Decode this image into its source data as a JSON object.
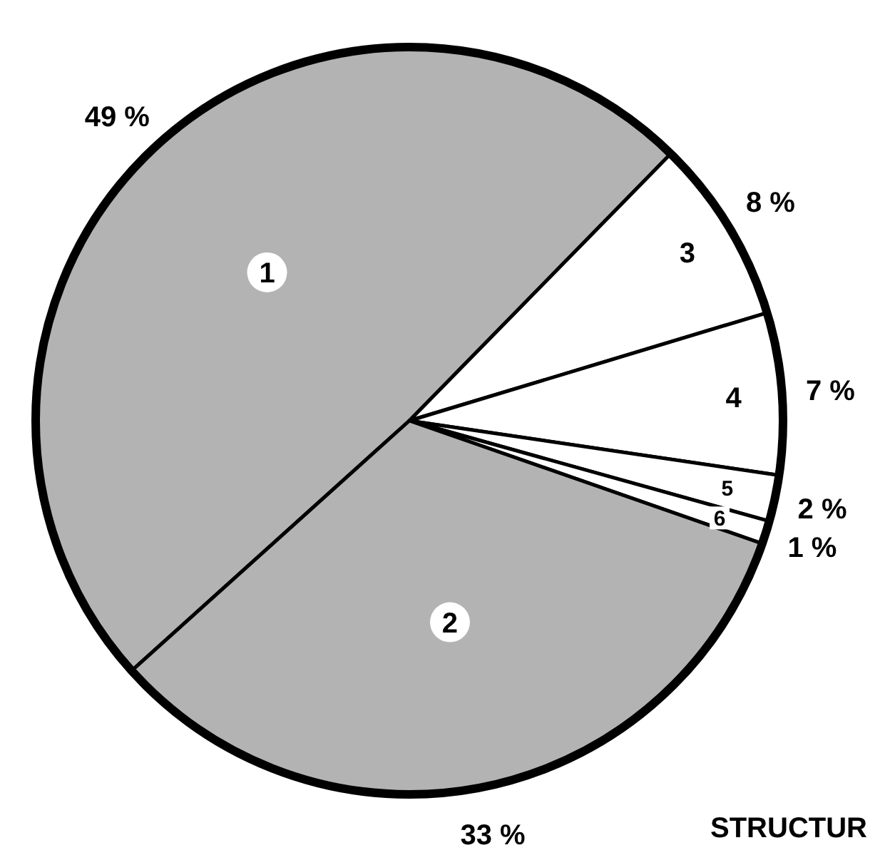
{
  "chart_data": {
    "type": "pie",
    "categories": [
      "1",
      "3",
      "4",
      "5",
      "6",
      "2"
    ],
    "values": [
      49,
      8,
      7,
      2,
      1,
      33
    ],
    "value_labels": [
      "49 %",
      "8 %",
      "7 %",
      "2 %",
      "1 %",
      "33 %"
    ],
    "colors": [
      "#b3b3b3",
      "#ffffff",
      "#ffffff",
      "#ffffff",
      "#ffffff",
      "#b3b3b3"
    ],
    "annotations": [
      "STRUCTUR"
    ]
  }
}
